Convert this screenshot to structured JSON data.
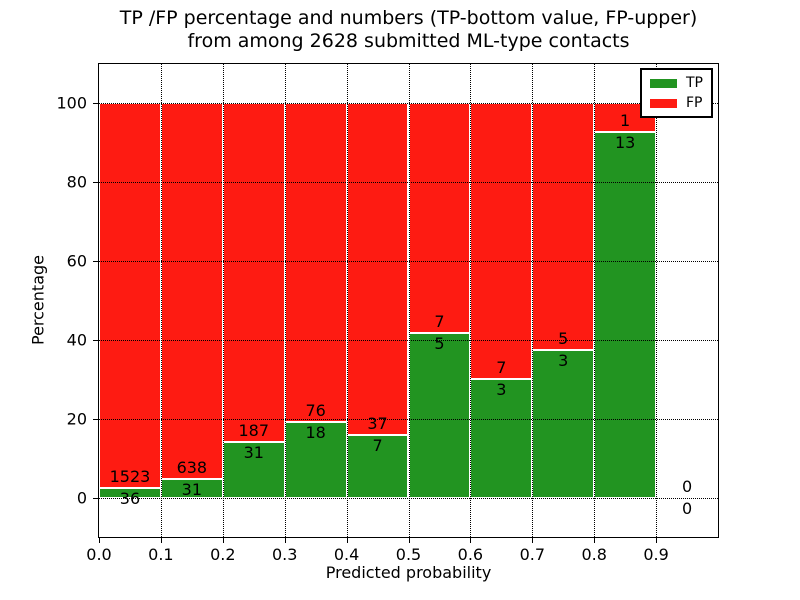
{
  "header": {
    "title_line1": "TP /FP percentage and numbers (TP-bottom value, FP-upper)",
    "title_line2": "from among 2628 submitted ML-type contacts"
  },
  "colors": {
    "tp_green": "#229421",
    "fp_red": "#fe1b12",
    "grid": "#000000",
    "text": "#000000",
    "background": "#ffffff"
  },
  "chart_data": {
    "type": "bar",
    "stacked": true,
    "normalized_to_percent": true,
    "title": "TP /FP percentage and numbers (TP-bottom value, FP-upper)\nfrom among 2628 submitted ML-type contacts",
    "xlabel": "Predicted probability",
    "ylabel": "Percentage",
    "xlim": [
      0.0,
      1.0
    ],
    "ylim": [
      -10,
      110
    ],
    "grid": "dotted",
    "total_contacts": 2628,
    "x_ticks": [
      {
        "value": 0.0,
        "label": "0.0"
      },
      {
        "value": 0.1,
        "label": "0.1"
      },
      {
        "value": 0.2,
        "label": "0.2"
      },
      {
        "value": 0.3,
        "label": "0.3"
      },
      {
        "value": 0.4,
        "label": "0.4"
      },
      {
        "value": 0.5,
        "label": "0.5"
      },
      {
        "value": 0.6,
        "label": "0.6"
      },
      {
        "value": 0.7,
        "label": "0.7"
      },
      {
        "value": 0.8,
        "label": "0.8"
      },
      {
        "value": 0.9,
        "label": "0.9"
      }
    ],
    "y_ticks": [
      {
        "value": 0,
        "label": "0"
      },
      {
        "value": 20,
        "label": "20"
      },
      {
        "value": 40,
        "label": "40"
      },
      {
        "value": 60,
        "label": "60"
      },
      {
        "value": 80,
        "label": "80"
      },
      {
        "value": 100,
        "label": "100"
      }
    ],
    "legend": {
      "position": "upper right",
      "entries": [
        {
          "label": "TP",
          "color": "#229421"
        },
        {
          "label": "FP",
          "color": "#fe1b12"
        }
      ]
    },
    "bins": [
      {
        "x_start": 0.0,
        "x_end": 0.1,
        "tp": 36,
        "fp": 1523
      },
      {
        "x_start": 0.1,
        "x_end": 0.2,
        "tp": 31,
        "fp": 638
      },
      {
        "x_start": 0.2,
        "x_end": 0.3,
        "tp": 31,
        "fp": 187
      },
      {
        "x_start": 0.3,
        "x_end": 0.4,
        "tp": 18,
        "fp": 76
      },
      {
        "x_start": 0.4,
        "x_end": 0.5,
        "tp": 7,
        "fp": 37
      },
      {
        "x_start": 0.5,
        "x_end": 0.6,
        "tp": 5,
        "fp": 7
      },
      {
        "x_start": 0.6,
        "x_end": 0.7,
        "tp": 3,
        "fp": 7
      },
      {
        "x_start": 0.7,
        "x_end": 0.8,
        "tp": 3,
        "fp": 5
      },
      {
        "x_start": 0.8,
        "x_end": 0.9,
        "tp": 13,
        "fp": 1
      },
      {
        "x_start": 0.9,
        "x_end": 1.0,
        "tp": 0,
        "fp": 0
      }
    ],
    "series": [
      {
        "name": "TP",
        "color": "#229421",
        "values_pct": [
          2.31,
          4.63,
          14.22,
          19.15,
          15.91,
          41.67,
          30.0,
          37.5,
          92.86,
          0
        ]
      },
      {
        "name": "FP",
        "color": "#fe1b12",
        "values_pct": [
          97.69,
          95.37,
          85.78,
          80.85,
          84.09,
          58.33,
          70.0,
          62.5,
          7.14,
          0
        ]
      }
    ]
  }
}
